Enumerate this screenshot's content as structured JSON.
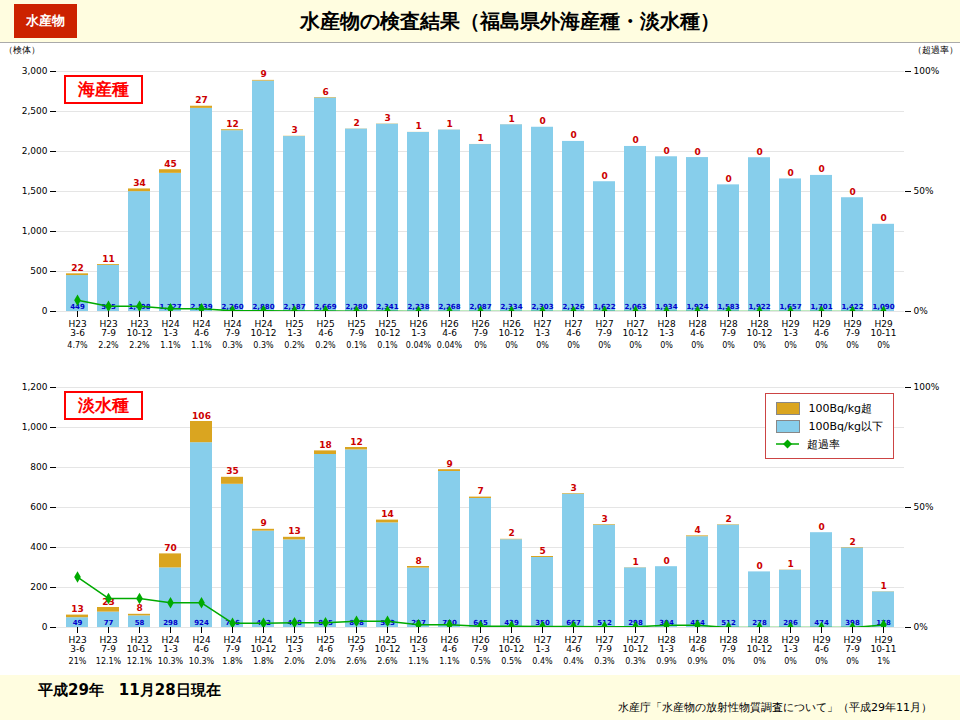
{
  "chart_data": [
    {
      "type": "bar",
      "title": "水産物の検査結果（福島県外海産種・淡水種）",
      "subtitle": "海産種",
      "annotations": [
        "水産物"
      ],
      "categories": [
        "H23\n3-6",
        "H23\n7-9",
        "H23\n10-12",
        "H24\n1-3",
        "H24\n4-6",
        "H24\n7-9",
        "H24\n10-12",
        "H25\n1-3",
        "H25\n4-6",
        "H25\n7-9",
        "H25\n10-12",
        "H26\n1-3",
        "H26\n4-6",
        "H26\n7-9",
        "H26\n10-12",
        "H27\n1-3",
        "H27\n4-6",
        "H27\n7-9",
        "H27\n10-12",
        "H28\n1-3",
        "H28\n4-6",
        "H28\n7-9",
        "H28\n10-12",
        "H29\n1-3",
        "H29\n4-6",
        "H29\n7-9",
        "H29\n10-11"
      ],
      "stacked": true,
      "grid": true,
      "ylabel": "（検体）",
      "y2label": "（超過率）",
      "ylim": [
        0,
        3000
      ],
      "yticks": [
        0,
        500,
        {
          "value": 1000,
          "label": "1,000"
        },
        {
          "value": 1500,
          "label": "1,500"
        },
        {
          "value": 2000,
          "label": "2,000"
        },
        {
          "value": 2500,
          "label": "2,500"
        },
        {
          "value": 3000,
          "label": "3,000"
        }
      ],
      "y2lim": [
        0,
        100
      ],
      "y2ticks": [
        {
          "value": 0,
          "label": "0%"
        },
        {
          "value": 50,
          "label": "50%"
        },
        {
          "value": 100,
          "label": "100%"
        }
      ],
      "series": [
        {
          "name": "100Bq/kg以下",
          "type": "bar",
          "color": "#87CEEB",
          "data_labels": true,
          "values": [
            449,
            575,
            1498,
            1727,
            2539,
            2260,
            2880,
            2187,
            2669,
            2280,
            2341,
            2238,
            2268,
            2087,
            2334,
            2303,
            2126,
            1622,
            2063,
            1934,
            1924,
            1583,
            1922,
            1657,
            1701,
            1422,
            1090
          ],
          "value_labels": [
            "449",
            "575",
            "1,498",
            "1,727",
            "2,539",
            "2,260",
            "2,880",
            "2,187",
            "2,669",
            "2,280",
            "2,341",
            "2,238",
            "2,268",
            "2,087",
            "2,334",
            "2,303",
            "2,126",
            "1,622",
            "2,063",
            "1,934",
            "1,924",
            "1,583",
            "1,922",
            "1,657",
            "1,701",
            "1,422",
            "1,090"
          ]
        },
        {
          "name": "100Bq/kg超",
          "type": "bar",
          "color": "#DAA520",
          "data_labels": true,
          "values": [
            22,
            11,
            34,
            45,
            27,
            12,
            9,
            3,
            6,
            2,
            3,
            1,
            1,
            1,
            1,
            0,
            0,
            0,
            0,
            0,
            0,
            0,
            0,
            0,
            0,
            0,
            0
          ]
        },
        {
          "name": "超過率",
          "type": "line",
          "axis": "y2",
          "color": "#00aa00",
          "marker": "diamond",
          "data_labels": true,
          "values": [
            4.7,
            2.2,
            2.2,
            1.1,
            1.1,
            0.3,
            0.3,
            0.2,
            0.2,
            0.1,
            0.1,
            0.04,
            0.04,
            0.0,
            0.0,
            0.0,
            0.0,
            0.0,
            0.0,
            0.0,
            0.0,
            0.0,
            0.0,
            0.0,
            0.0,
            0.0,
            0.0
          ],
          "value_labels": [
            "4.7%",
            "2.2%",
            "2.2%",
            "1.1%",
            "1.1%",
            "0.3%",
            "0.3%",
            "0.2%",
            "0.2%",
            "0.1%",
            "0.1%",
            "0.04%",
            "0.04%",
            "0%",
            "0%",
            "0%",
            "0%",
            "0%",
            "0%",
            "0%",
            "0%",
            "0%",
            "0%",
            "0%",
            "0%",
            "0%",
            "0%"
          ]
        }
      ]
    },
    {
      "type": "bar",
      "subtitle": "淡水種",
      "annotations": [
        "平成29年　11月28日現在",
        "水産庁「水産物の放射性物質調査について」（平成29年11月）"
      ],
      "categories": [
        "H23\n3-6",
        "H23\n7-9",
        "H23\n10-12",
        "H24\n1-3",
        "H24\n4-6",
        "H24\n7-9",
        "H24\n10-12",
        "H25\n1-3",
        "H25\n4-6",
        "H25\n7-9",
        "H25\n10-12",
        "H26\n1-3",
        "H26\n4-6",
        "H26\n7-9",
        "H26\n10-12",
        "H27\n1-3",
        "H27\n4-6",
        "H27\n7-9",
        "H27\n10-12",
        "H28\n1-3",
        "H28\n4-6",
        "H28\n7-9",
        "H28\n10-12",
        "H29\n1-3",
        "H29\n4-6",
        "H29\n7-9",
        "H29\n10-11"
      ],
      "stacked": true,
      "grid": true,
      "legend": "upper right",
      "ylim": [
        0,
        1200
      ],
      "yticks": [
        0,
        200,
        400,
        600,
        800,
        {
          "value": 1000,
          "label": "1,000"
        },
        {
          "value": 1200,
          "label": "1,200"
        }
      ],
      "y2lim": [
        0,
        100
      ],
      "y2ticks": [
        {
          "value": 0,
          "label": "0%"
        },
        {
          "value": 50,
          "label": "50%"
        },
        {
          "value": 100,
          "label": "100%"
        }
      ],
      "series": [
        {
          "name": "100Bq/kg以下",
          "type": "bar",
          "color": "#87CEEB",
          "data_labels": true,
          "values": [
            49,
            77,
            58,
            298,
            924,
            716,
            482,
            438,
            865,
            888,
            523,
            297,
            780,
            645,
            439,
            350,
            667,
            512,
            298,
            304,
            454,
            512,
            278,
            286,
            474,
            398,
            178
          ]
        },
        {
          "name": "100Bq/kg超",
          "type": "bar",
          "color": "#DAA520",
          "data_labels": true,
          "values": [
            13,
            23,
            8,
            70,
            106,
            35,
            9,
            13,
            18,
            12,
            14,
            8,
            9,
            7,
            2,
            5,
            3,
            3,
            1,
            0,
            4,
            2,
            0,
            1,
            0,
            2,
            1
          ]
        },
        {
          "name": "超過率",
          "type": "line",
          "axis": "y2",
          "color": "#00aa00",
          "marker": "diamond",
          "data_labels": true,
          "values": [
            21.0,
            12.1,
            12.1,
            10.3,
            10.3,
            1.8,
            1.8,
            2.0,
            2.0,
            2.6,
            2.6,
            1.1,
            1.1,
            0.5,
            0.5,
            0.4,
            0.4,
            0.3,
            0.3,
            0.9,
            0.9,
            0.0,
            0.0,
            0.0,
            0.0,
            0.0,
            1.0
          ],
          "value_labels": [
            "21%",
            "12.1%",
            "12.1%",
            "10.3%",
            "10.3%",
            "1.8%",
            "1.8%",
            "2.0%",
            "2.0%",
            "2.6%",
            "2.6%",
            "1.1%",
            "1.1%",
            "0.5%",
            "0.5%",
            "0.4%",
            "0.4%",
            "0.3%",
            "0.3%",
            "0.9%",
            "0.9%",
            "0%",
            "0%",
            "0%",
            "0%",
            "0%",
            "1%"
          ]
        }
      ]
    }
  ]
}
